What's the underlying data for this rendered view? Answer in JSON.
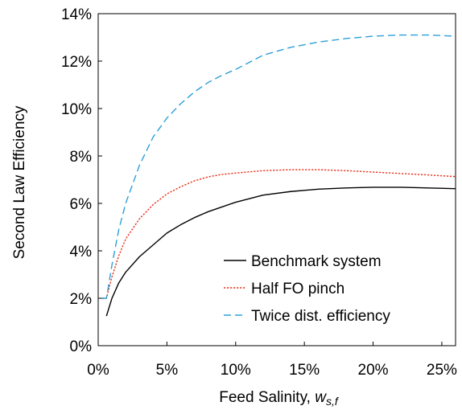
{
  "chart_data": {
    "type": "line",
    "xlabel": "Feed Salinity, ",
    "xlabel_var": "w",
    "xlabel_sub": "s,f",
    "ylabel": "Second Law Efficiency",
    "xlim": [
      0,
      0.26
    ],
    "ylim": [
      0,
      0.14
    ],
    "xticks": [
      0,
      0.05,
      0.1,
      0.15,
      0.2,
      0.25
    ],
    "xtick_labels": [
      "0%",
      "5%",
      "10%",
      "15%",
      "20%",
      "25%"
    ],
    "yticks": [
      0,
      0.02,
      0.04,
      0.06,
      0.08,
      0.1,
      0.12,
      0.14
    ],
    "ytick_labels": [
      "0%",
      "2%",
      "4%",
      "6%",
      "8%",
      "10%",
      "12%",
      "14%"
    ],
    "legend_position": "bottom-right",
    "grid": false,
    "series": [
      {
        "name": "Benchmark system",
        "color": "#000000",
        "dash": "solid",
        "x": [
          0.006,
          0.01,
          0.015,
          0.02,
          0.03,
          0.04,
          0.05,
          0.06,
          0.07,
          0.08,
          0.09,
          0.1,
          0.12,
          0.14,
          0.16,
          0.18,
          0.2,
          0.22,
          0.24,
          0.26
        ],
        "y": [
          0.0125,
          0.02,
          0.0265,
          0.031,
          0.0375,
          0.0425,
          0.0475,
          0.051,
          0.054,
          0.0565,
          0.0585,
          0.0605,
          0.0635,
          0.065,
          0.066,
          0.0665,
          0.0668,
          0.0668,
          0.0665,
          0.0662
        ]
      },
      {
        "name": "Half FO pinch",
        "color": "#e8321e",
        "dash": "dotted",
        "x": [
          0.003,
          0.006,
          0.01,
          0.015,
          0.02,
          0.03,
          0.04,
          0.05,
          0.06,
          0.07,
          0.08,
          0.09,
          0.1,
          0.12,
          0.14,
          0.16,
          0.18,
          0.2,
          0.22,
          0.24,
          0.26
        ],
        "y": [
          0.02,
          0.02,
          0.029,
          0.038,
          0.045,
          0.0535,
          0.0595,
          0.064,
          0.067,
          0.0695,
          0.0712,
          0.0722,
          0.0728,
          0.0738,
          0.0742,
          0.0742,
          0.0738,
          0.0732,
          0.0726,
          0.072,
          0.0713
        ]
      },
      {
        "name": "Twice dist. efficiency",
        "color": "#2e9fd8",
        "dash": "dashed",
        "x": [
          0.003,
          0.006,
          0.01,
          0.015,
          0.02,
          0.03,
          0.04,
          0.05,
          0.06,
          0.07,
          0.08,
          0.09,
          0.1,
          0.12,
          0.14,
          0.16,
          0.18,
          0.2,
          0.22,
          0.24,
          0.26
        ],
        "y": [
          0.02,
          0.02,
          0.034,
          0.049,
          0.06,
          0.076,
          0.088,
          0.096,
          0.102,
          0.107,
          0.111,
          0.114,
          0.1165,
          0.1225,
          0.1258,
          0.128,
          0.1295,
          0.1305,
          0.131,
          0.131,
          0.1305
        ]
      }
    ]
  }
}
